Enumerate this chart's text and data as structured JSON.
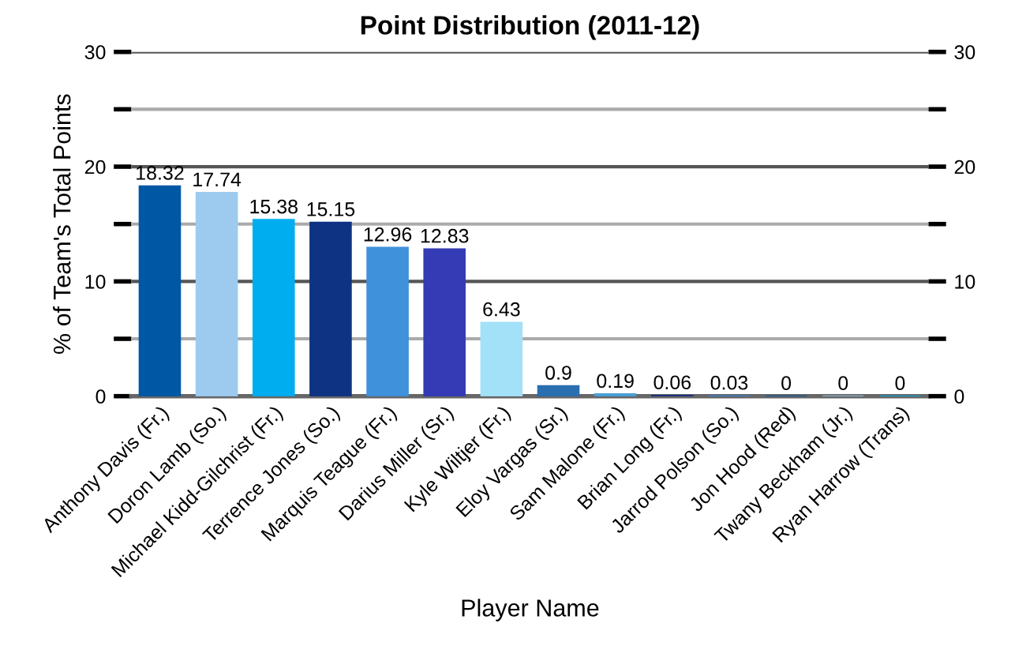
{
  "chart_data": {
    "type": "bar",
    "title": "Point Distribution (2011-12)",
    "xlabel": "Player Name",
    "ylabel": "% of Team's Total Points",
    "categories": [
      "Anthony Davis (Fr.)",
      "Doron Lamb (So.)",
      "Michael Kidd-Gilchrist (Fr.)",
      "Terrence Jones (So.)",
      "Marquis Teague (Fr.)",
      "Darius Miller (Sr.)",
      "Kyle Wiltjer (Fr.)",
      "Eloy Vargas (Sr.)",
      "Sam Malone (Fr.)",
      "Brian Long (Fr.)",
      "Jarrod Polson (So.)",
      "Jon Hood (Red)",
      "Twany Beckham (Jr.)",
      "Ryan Harrow (Trans)"
    ],
    "values": [
      18.32,
      17.74,
      15.38,
      15.15,
      12.96,
      12.83,
      6.43,
      0.9,
      0.19,
      0.06,
      0.03,
      0,
      0,
      0
    ],
    "colors": [
      "#0057a3",
      "#9ccbef",
      "#00adef",
      "#0f3383",
      "#4091dc",
      "#353bb4",
      "#a3e1f8",
      "#2a6fb0",
      "#4aa0d8",
      "#1b2f80",
      "#3b7fcf",
      "#0057a3",
      "#9ccbef",
      "#00adef"
    ],
    "ylim": [
      0,
      30
    ],
    "yticks": [
      0,
      {
        "value": 5,
        "label": null
      },
      10,
      {
        "value": 15,
        "label": null
      },
      20,
      {
        "value": 25,
        "label": null
      },
      30
    ],
    "y2lim": [
      0,
      30
    ],
    "y2ticks": [
      0,
      {
        "value": 5,
        "label": null
      },
      10,
      {
        "value": 15,
        "label": null
      },
      20,
      {
        "value": 25,
        "label": null
      },
      30
    ],
    "grid": "y",
    "data_labels": true
  }
}
